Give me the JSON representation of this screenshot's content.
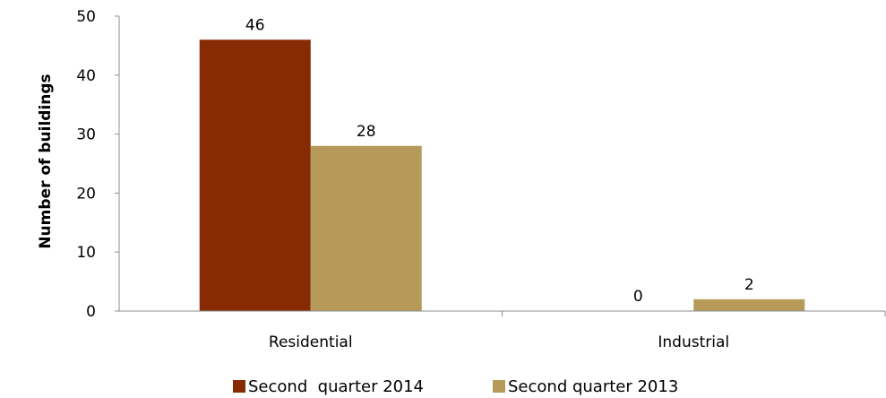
{
  "chart_data": {
    "type": "bar",
    "title": "",
    "xlabel": "",
    "ylabel": "Number of buildings",
    "categories": [
      "Residential",
      "Industrial"
    ],
    "series": [
      {
        "name": "Second  quarter 2014",
        "values": [
          46,
          0
        ],
        "color": "#862b04"
      },
      {
        "name": "Second quarter 2013",
        "values": [
          28,
          2
        ],
        "color": "#b59a5a"
      }
    ],
    "data_labels": [
      [
        "46",
        "0"
      ],
      [
        "28",
        "2"
      ]
    ],
    "ylim": [
      0,
      50
    ],
    "yticks": [
      "0",
      "10",
      "20",
      "30",
      "40",
      "50"
    ],
    "grid": false,
    "legend_position": "bottom"
  }
}
